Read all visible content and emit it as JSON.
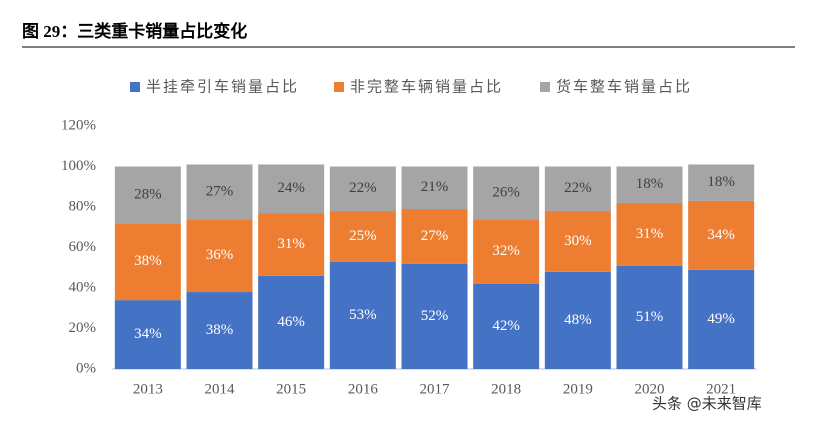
{
  "chart_data": {
    "type": "stacked_bar",
    "title": "图 29：三类重卡销量占比变化",
    "categories": [
      "2013",
      "2014",
      "2015",
      "2016",
      "2017",
      "2018",
      "2019",
      "2020",
      "2021"
    ],
    "series": [
      {
        "name": "半挂牵引车销量占比",
        "color": "#4472c4",
        "values": [
          34,
          38,
          46,
          53,
          52,
          42,
          48,
          51,
          49
        ],
        "value_labels": [
          "34%",
          "38%",
          "46%",
          "53%",
          "52%",
          "42%",
          "48%",
          "51%",
          "49%"
        ]
      },
      {
        "name": "非完整车辆销量占比",
        "color": "#ed7d31",
        "values": [
          38,
          36,
          31,
          25,
          27,
          32,
          30,
          31,
          34
        ],
        "value_labels": [
          "38%",
          "36%",
          "31%",
          "25%",
          "27%",
          "32%",
          "30%",
          "31%",
          "34%"
        ]
      },
      {
        "name": "货车整车销量占比",
        "color": "#a5a5a5",
        "values": [
          28,
          27,
          24,
          22,
          21,
          26,
          22,
          18,
          18
        ],
        "value_labels": [
          "28%",
          "27%",
          "24%",
          "22%",
          "21%",
          "26%",
          "22%",
          "18%",
          "18%"
        ]
      }
    ],
    "ylim": [
      0,
      120
    ],
    "yticks": [
      {
        "value": 0,
        "label": "0%"
      },
      {
        "value": 20,
        "label": "20%"
      },
      {
        "value": 40,
        "label": "40%"
      },
      {
        "value": 60,
        "label": "60%"
      },
      {
        "value": 80,
        "label": "80%"
      },
      {
        "value": 100,
        "label": "100%"
      },
      {
        "value": 120,
        "label": "120%"
      }
    ],
    "legend": "top",
    "watermark": "头条 @未来智库"
  }
}
